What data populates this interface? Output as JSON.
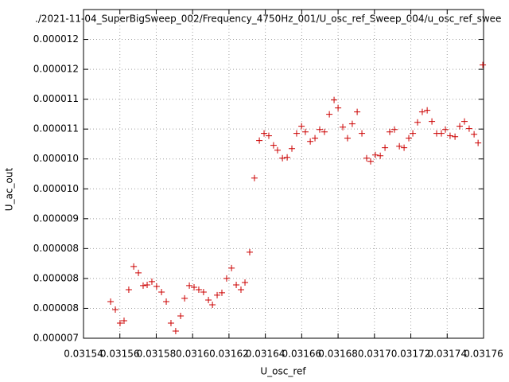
{
  "chart_data": {
    "type": "scatter",
    "title": "./2021-11-04_SuperBigSweep_002/Frequency_4750Hz_001/U_osc_ref_Sweep_004/u_osc_ref_swee",
    "x_label": "U_osc_ref",
    "y_label": "U_ac_out",
    "color": "#cc0000",
    "grid": true,
    "xlim": [
      0.03154,
      0.03176
    ],
    "xticks": [
      0.03154,
      0.03156,
      0.03158,
      0.0316,
      0.03162,
      0.03164,
      0.03166,
      0.03168,
      0.0317,
      0.03172,
      0.03174,
      0.03176
    ],
    "ylim": [
      7e-06,
      1.25e-05
    ],
    "yticks": [
      {
        "value": 7e-06,
        "label": "0.000007"
      },
      {
        "value": 7.5e-06,
        "label": "0.000008"
      },
      {
        "value": 8e-06,
        "label": "0.000008"
      },
      {
        "value": 8.5e-06,
        "label": "0.000008"
      },
      {
        "value": 9e-06,
        "label": "0.000009"
      },
      {
        "value": 9.5e-06,
        "label": "0.000010"
      },
      {
        "value": 1e-05,
        "label": "0.000010"
      },
      {
        "value": 1.05e-05,
        "label": "0.000011"
      },
      {
        "value": 1.1e-05,
        "label": "0.000011"
      },
      {
        "value": 1.15e-05,
        "label": "0.000012"
      },
      {
        "value": 1.2e-05,
        "label": "0.000012"
      }
    ],
    "x": [
      0.0315549,
      0.0315575,
      0.0315601,
      0.0315623,
      0.0315649,
      0.0315676,
      0.0315702,
      0.0315728,
      0.031575,
      0.0315776,
      0.0315802,
      0.0315829,
      0.0315855,
      0.0315881,
      0.0315907,
      0.0315934,
      0.0315956,
      0.0315982,
      0.0316008,
      0.0316034,
      0.031606,
      0.0316087,
      0.0316109,
      0.0316135,
      0.0316161,
      0.0316187,
      0.0316214,
      0.031624,
      0.0316266,
      0.0316288,
      0.0316314,
      0.031634,
      0.0316367,
      0.0316393,
      0.0316419,
      0.0316445,
      0.0316467,
      0.0316494,
      0.031652,
      0.0316546,
      0.0316572,
      0.0316599,
      0.031662,
      0.0316647,
      0.0316673,
      0.0316699,
      0.0316725,
      0.0316752,
      0.0316778,
      0.03168,
      0.0316826,
      0.0316852,
      0.0316878,
      0.0316905,
      0.0316931,
      0.0316957,
      0.0316979,
      0.0317005,
      0.0317032,
      0.0317058,
      0.0317084,
      0.031711,
      0.0317137,
      0.0317163,
      0.0317189,
      0.0317211,
      0.0317237,
      0.0317263,
      0.031729,
      0.0317316,
      0.0317342,
      0.0317368,
      0.031739,
      0.0317416,
      0.0317443,
      0.0317469,
      0.0317495,
      0.0317521,
      0.0317548,
      0.031757,
      0.0317596
    ],
    "values": [
      7.613e-06,
      7.48e-06,
      7.253e-06,
      7.293e-06,
      7.813e-06,
      8.2e-06,
      8.093e-06,
      7.88e-06,
      7.893e-06,
      7.947e-06,
      7.867e-06,
      7.773e-06,
      7.613e-06,
      7.253e-06,
      7.12e-06,
      7.373e-06,
      7.667e-06,
      7.88e-06,
      7.853e-06,
      7.813e-06,
      7.773e-06,
      7.64e-06,
      7.56e-06,
      7.72e-06,
      7.76e-06,
      8e-06,
      8.173e-06,
      7.893e-06,
      7.813e-06,
      7.933e-06,
      8.44e-06,
      9.68e-06,
      1.0307e-05,
      1.0427e-05,
      1.0387e-05,
      1.0227e-05,
      1.0147e-05,
      1.0013e-05,
      1.0027e-05,
      1.0173e-05,
      1.0427e-05,
      1.0547e-05,
      1.0453e-05,
      1.0293e-05,
      1.0347e-05,
      1.0493e-05,
      1.0453e-05,
      1.0747e-05,
      1.0987e-05,
      1.0853e-05,
      1.0533e-05,
      1.0347e-05,
      1.0587e-05,
      1.0787e-05,
      1.0427e-05,
      1.0013e-05,
      9.96e-06,
      1.0067e-05,
      1.0053e-05,
      1.0187e-05,
      1.0453e-05,
      1.0493e-05,
      1.0213e-05,
      1.0187e-05,
      1.0347e-05,
      1.0427e-05,
      1.0613e-05,
      1.0787e-05,
      1.0813e-05,
      1.0627e-05,
      1.0427e-05,
      1.0427e-05,
      1.0493e-05,
      1.0387e-05,
      1.0373e-05,
      1.0547e-05,
      1.0627e-05,
      1.0507e-05,
      1.0413e-05,
      1.0267e-05,
      1.1573e-05
    ]
  }
}
